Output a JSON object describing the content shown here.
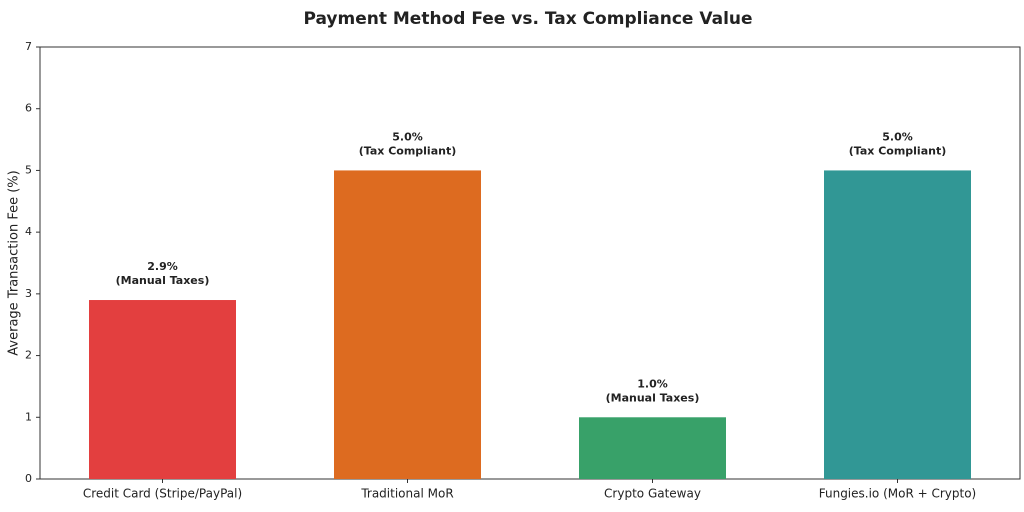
{
  "chart_data": {
    "type": "bar",
    "title": "Payment Method Fee vs. Tax Compliance Value",
    "y_label": "Average Transaction Fee (%)",
    "categories": [
      "Credit Card (Stripe/PayPal)",
      "Traditional MoR",
      "Crypto Gateway",
      "Fungies.io (MoR + Crypto)"
    ],
    "values": [
      2.9,
      5.0,
      1.0,
      5.0
    ],
    "value_labels": [
      "2.9%",
      "5.0%",
      "1.0%",
      "5.0%"
    ],
    "annotations": [
      "(Manual Taxes)",
      "(Tax Compliant)",
      "(Manual Taxes)",
      "(Tax Compliant)"
    ],
    "colors": [
      "#e33f3f",
      "#dd6b20",
      "#38a169",
      "#319795"
    ],
    "ylim": [
      0,
      7
    ],
    "yticks": [
      0,
      1,
      2,
      3,
      4,
      5,
      6,
      7
    ],
    "grid": false
  }
}
